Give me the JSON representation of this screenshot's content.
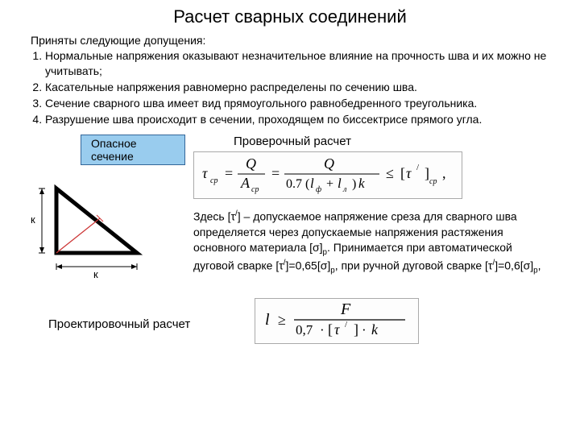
{
  "title": "Расчет сварных соединений",
  "intro": "Приняты следующие допущения:",
  "assumptions": [
    "Нормальные напряжения оказывают незначительное влияние на прочность шва и их можно не учитывать;",
    "Касательные напряжения равномерно распределены по сечению шва.",
    "Сечение сварного шва имеет вид прямоугольного равнобедренного треугольника.",
    "Разрушение шва происходит  в сечении, проходящем по биссектрисе прямого угла."
  ],
  "danger_label": "Опасное сечение",
  "check_label": "Проверочный расчет",
  "design_label": "Проектировочный расчет",
  "explain_html": "Здесь [τ<span class='sup'>/</span>] – допускаемое напряжение среза для сварного шва определяется через допускаемые напряжения растяжения основного материала [σ]<span class='sub'>р</span>. Принимается при автоматической дуговой сварке [τ<span class='sup'>/</span>]=0,65[σ]<span class='sub'>р</span>, при ручной дуговой сварке [τ<span class='sup'>/</span>]=0,6[σ]<span class='sub'>р</span>,",
  "diagram": {
    "k_label": "к",
    "stroke": "#000000",
    "bisector_color": "#cc3333",
    "dim_color": "#000000"
  },
  "formula1": {
    "tau": "τ",
    "sub_sr": "ср",
    "Q": "Q",
    "A": "A",
    "coef": "0.7",
    "lf": "l",
    "lf_sub": "ф",
    "ll": "l",
    "ll_sub": "л",
    "k": "k",
    "le": "≤",
    "brL": "[",
    "brR": "]",
    "prime": "/",
    "comma": ","
  },
  "formula2": {
    "l": "l",
    "ge": "≥",
    "F": "F",
    "coef": "0,7",
    "tau": "τ",
    "prime": "/",
    "k": "k",
    "brL": "[",
    "brR": "]",
    "dot": "·"
  },
  "colors": {
    "danger_bg": "#99ccee",
    "danger_border": "#336699",
    "formula_border": "#aaaaaa"
  }
}
